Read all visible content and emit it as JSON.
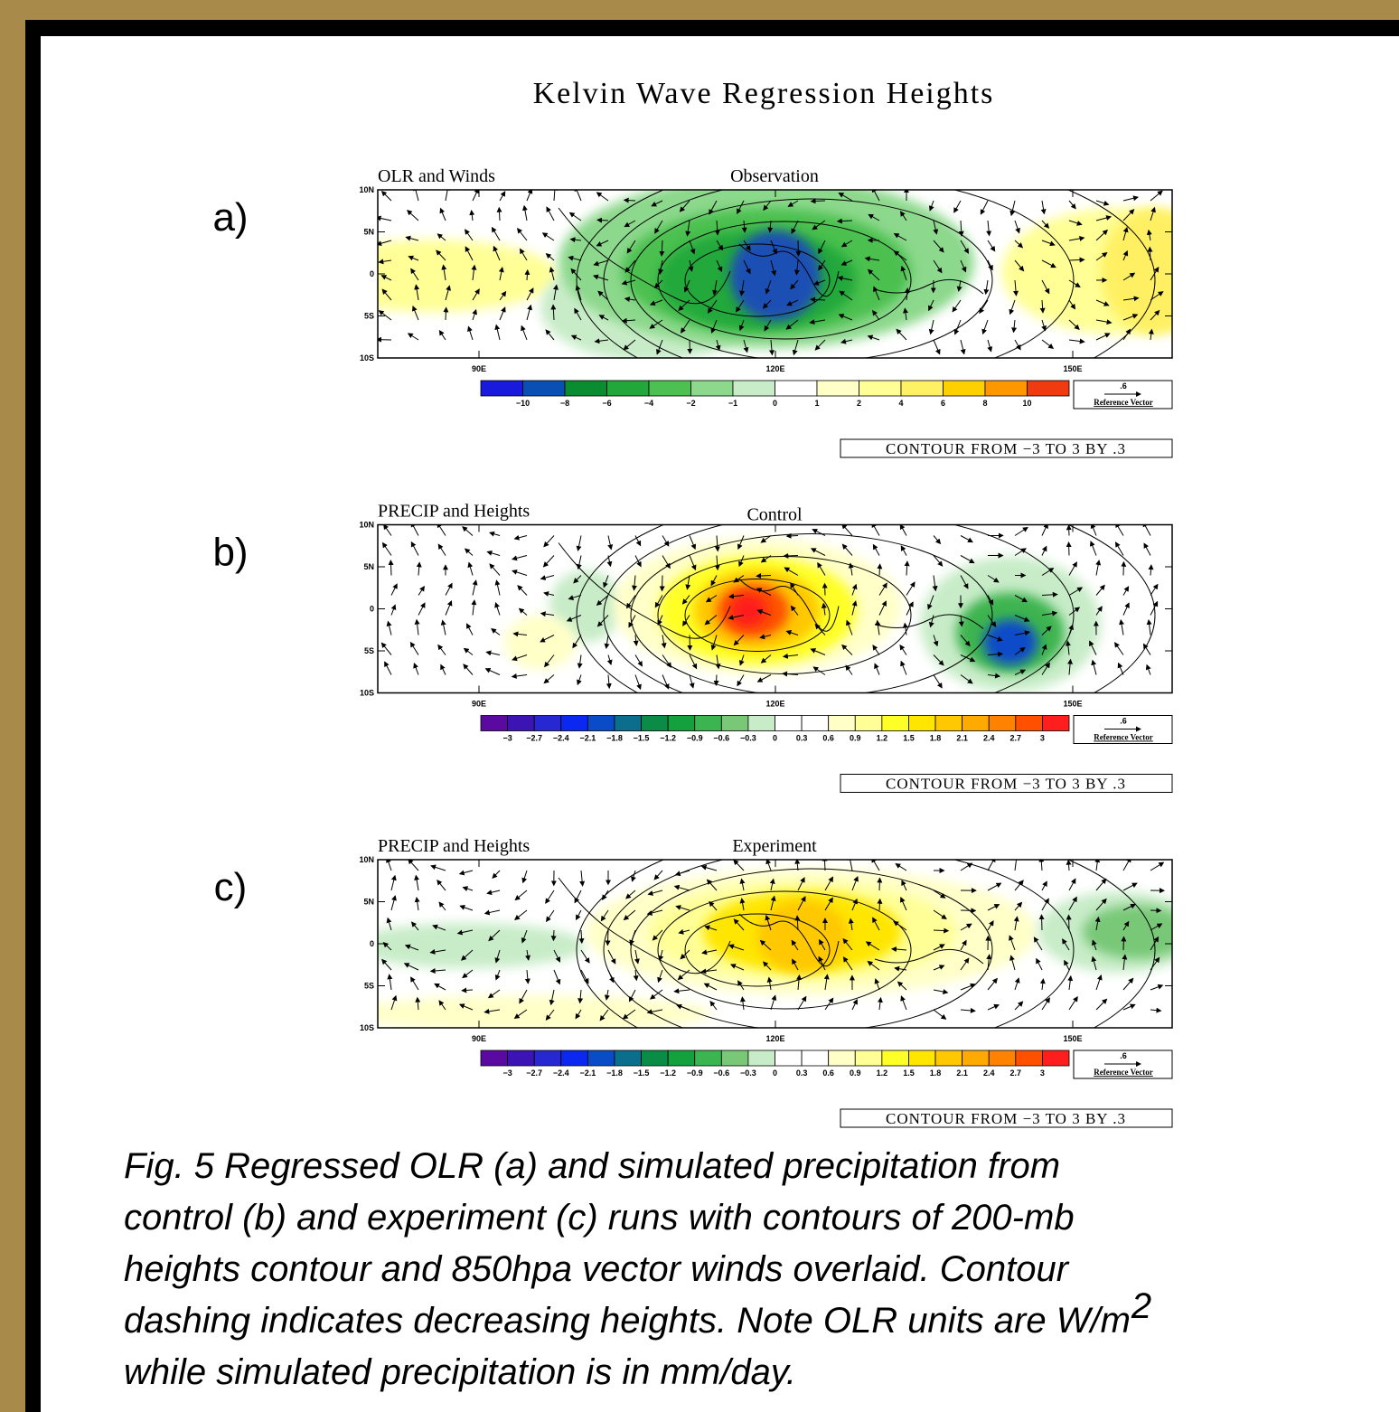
{
  "title": "Kelvin Wave Regression Heights",
  "panels": [
    {
      "letter": "a)",
      "left_title": "OLR and Winds",
      "center_title": "Observation",
      "lat_labels": [
        "10N",
        "5N",
        "0",
        "5S",
        "10S"
      ],
      "lon_labels": [
        "90E",
        "120E",
        "150E"
      ],
      "colorbar_labels": [
        "−10",
        "−8",
        "−6",
        "−4",
        "−2",
        "−1",
        "0",
        "1",
        "2",
        "4",
        "6",
        "8",
        "10"
      ],
      "colorbar_colors": [
        "#1a1adc",
        "#0a4fb4",
        "#0a8c30",
        "#22a83a",
        "#4cc050",
        "#8cd88c",
        "#c8ecc8",
        "#ffffff",
        "#ffffc8",
        "#ffff96",
        "#fff064",
        "#ffd000",
        "#ff9800",
        "#f03a10"
      ],
      "ref_value": ".6",
      "ref_label": "Reference Vector",
      "contour_note": "CONTOUR FROM −3 TO 3 BY .3"
    },
    {
      "letter": "b)",
      "left_title": "PRECIP and Heights",
      "center_title": "Control",
      "lat_labels": [
        "10N",
        "5N",
        "0",
        "5S",
        "10S"
      ],
      "lon_labels": [
        "90E",
        "120E",
        "150E"
      ],
      "colorbar_labels": [
        "−3",
        "−2.7",
        "−2.4",
        "−2.1",
        "−1.8",
        "−1.5",
        "−1.2",
        "−0.9",
        "−0.6",
        "−0.3",
        "0",
        "0.3",
        "0.6",
        "0.9",
        "1.2",
        "1.5",
        "1.8",
        "2.1",
        "2.4",
        "2.7",
        "3"
      ],
      "colorbar_colors": [
        "#5a0aa0",
        "#3c14b4",
        "#2828d2",
        "#0a28f0",
        "#0a4bc8",
        "#0a6e8c",
        "#0a8c46",
        "#14a03c",
        "#3cb450",
        "#78c878",
        "#c8ecc8",
        "#ffffff",
        "#ffffff",
        "#ffffc8",
        "#ffff96",
        "#ffff28",
        "#ffe600",
        "#ffc800",
        "#ffaa00",
        "#ff8200",
        "#ff5000",
        "#ff1e1e"
      ],
      "ref_value": ".6",
      "ref_label": "Reference Vector",
      "contour_note": "CONTOUR FROM −3 TO 3 BY .3"
    },
    {
      "letter": "c)",
      "left_title": "PRECIP and Heights",
      "center_title": "Experiment",
      "lat_labels": [
        "10N",
        "5N",
        "0",
        "5S",
        "10S"
      ],
      "lon_labels": [
        "90E",
        "120E",
        "150E"
      ],
      "colorbar_labels": [
        "−3",
        "−2.7",
        "−2.4",
        "−2.1",
        "−1.8",
        "−1.5",
        "−1.2",
        "−0.9",
        "−0.6",
        "−0.3",
        "0",
        "0.3",
        "0.6",
        "0.9",
        "1.2",
        "1.5",
        "1.8",
        "2.1",
        "2.4",
        "2.7",
        "3"
      ],
      "colorbar_colors": [
        "#5a0aa0",
        "#3c14b4",
        "#2828d2",
        "#0a28f0",
        "#0a4bc8",
        "#0a6e8c",
        "#0a8c46",
        "#14a03c",
        "#3cb450",
        "#78c878",
        "#c8ecc8",
        "#ffffff",
        "#ffffff",
        "#ffffc8",
        "#ffff96",
        "#ffff28",
        "#ffe600",
        "#ffc800",
        "#ffaa00",
        "#ff8200",
        "#ff5000",
        "#ff1e1e"
      ],
      "ref_value": ".6",
      "ref_label": "Reference Vector",
      "contour_note": "CONTOUR FROM −3 TO 3 BY .3"
    }
  ],
  "caption": {
    "lines": [
      "Fig. 5  Regressed OLR (a) and simulated precipitation from",
      "control (b) and experiment (c) runs with contours of 200-mb",
      "heights contour and 850hpa vector winds overlaid. Contour",
      "dashing indicates decreasing heights. Note OLR units are W/m",
      "while simulated precipitation is in mm/day."
    ],
    "superscript": "2"
  }
}
